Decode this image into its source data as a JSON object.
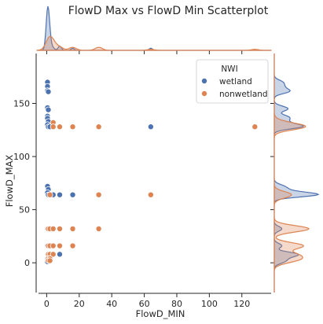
{
  "chart_data": {
    "type": "scatter",
    "title": "FlowD Max vs FlowD Min Scatterplot",
    "xlabel": "FlowD_MIN",
    "ylabel": "FlowD_MAX",
    "xlim": [
      -6,
      138
    ],
    "ylim": [
      -28,
      197
    ],
    "xticks": [
      0,
      20,
      40,
      60,
      80,
      100,
      120
    ],
    "yticks": [
      0,
      50,
      100,
      150
    ],
    "grid": false,
    "legend": {
      "title": "NWI",
      "placement": "top-right"
    },
    "marginals": {
      "x": "kde-top",
      "y": "kde-right"
    },
    "series": [
      {
        "name": "wetland",
        "color": "#4c72b0",
        "points": [
          [
            0.5,
            170
          ],
          [
            0.5,
            166
          ],
          [
            0.5,
            162
          ],
          [
            1,
            161
          ],
          [
            0.5,
            146
          ],
          [
            1,
            144
          ],
          [
            0.5,
            138
          ],
          [
            0.5,
            136
          ],
          [
            1,
            133
          ],
          [
            0.5,
            130
          ],
          [
            1,
            128
          ],
          [
            2,
            128
          ],
          [
            0.5,
            72
          ],
          [
            1,
            69
          ],
          [
            0.5,
            66
          ],
          [
            1,
            64
          ],
          [
            2,
            64
          ],
          [
            4,
            64
          ],
          [
            8,
            64
          ],
          [
            16,
            64
          ],
          [
            64,
            128
          ],
          [
            0.5,
            32
          ],
          [
            0.5,
            16
          ],
          [
            1,
            8
          ],
          [
            2,
            8
          ],
          [
            8,
            8
          ],
          [
            0.5,
            4
          ],
          [
            0.5,
            1
          ]
        ]
      },
      {
        "name": "nonwetland",
        "color": "#dd8452",
        "points": [
          [
            4,
            132
          ],
          [
            4,
            128
          ],
          [
            8,
            128
          ],
          [
            16,
            128
          ],
          [
            32,
            128
          ],
          [
            128,
            128
          ],
          [
            2,
            64
          ],
          [
            32,
            64
          ],
          [
            64,
            64
          ],
          [
            1,
            32
          ],
          [
            2,
            32
          ],
          [
            4,
            32
          ],
          [
            8,
            32
          ],
          [
            16,
            32
          ],
          [
            32,
            32
          ],
          [
            1,
            16
          ],
          [
            2,
            16
          ],
          [
            4,
            16
          ],
          [
            8,
            16
          ],
          [
            16,
            16
          ],
          [
            1,
            8
          ],
          [
            2,
            8
          ],
          [
            4,
            8
          ],
          [
            1,
            4
          ],
          [
            2,
            4
          ],
          [
            1,
            2
          ],
          [
            2,
            2
          ]
        ]
      }
    ]
  }
}
